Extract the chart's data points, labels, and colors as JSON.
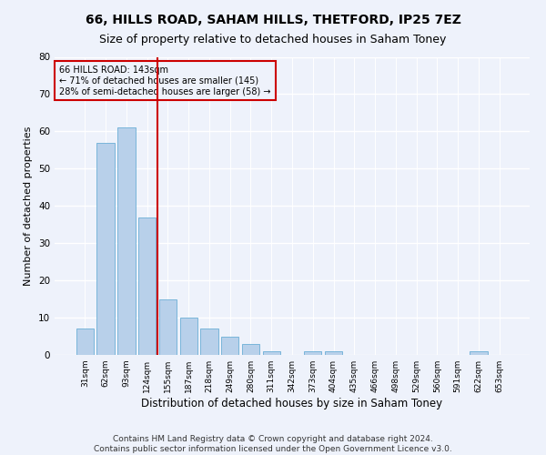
{
  "title1": "66, HILLS ROAD, SAHAM HILLS, THETFORD, IP25 7EZ",
  "title2": "Size of property relative to detached houses in Saham Toney",
  "xlabel": "Distribution of detached houses by size in Saham Toney",
  "ylabel": "Number of detached properties",
  "bar_labels": [
    "31sqm",
    "62sqm",
    "93sqm",
    "124sqm",
    "155sqm",
    "187sqm",
    "218sqm",
    "249sqm",
    "280sqm",
    "311sqm",
    "342sqm",
    "373sqm",
    "404sqm",
    "435sqm",
    "466sqm",
    "498sqm",
    "529sqm",
    "560sqm",
    "591sqm",
    "622sqm",
    "653sqm"
  ],
  "bar_values": [
    7,
    57,
    61,
    37,
    15,
    10,
    7,
    5,
    3,
    1,
    0,
    1,
    1,
    0,
    0,
    0,
    0,
    0,
    0,
    1,
    0
  ],
  "bar_color": "#b8d0ea",
  "bar_edge_color": "#6aaed6",
  "vline_x": 3.5,
  "vline_color": "#cc0000",
  "annotation_text": "66 HILLS ROAD: 143sqm\n← 71% of detached houses are smaller (145)\n28% of semi-detached houses are larger (58) →",
  "annotation_box_color": "#cc0000",
  "ylim": [
    0,
    80
  ],
  "yticks": [
    0,
    10,
    20,
    30,
    40,
    50,
    60,
    70,
    80
  ],
  "footnote": "Contains HM Land Registry data © Crown copyright and database right 2024.\nContains public sector information licensed under the Open Government Licence v3.0.",
  "bg_color": "#eef2fb",
  "grid_color": "#ffffff",
  "title1_fontsize": 10,
  "title2_fontsize": 9,
  "xlabel_fontsize": 8.5,
  "ylabel_fontsize": 8,
  "footnote_fontsize": 6.5
}
